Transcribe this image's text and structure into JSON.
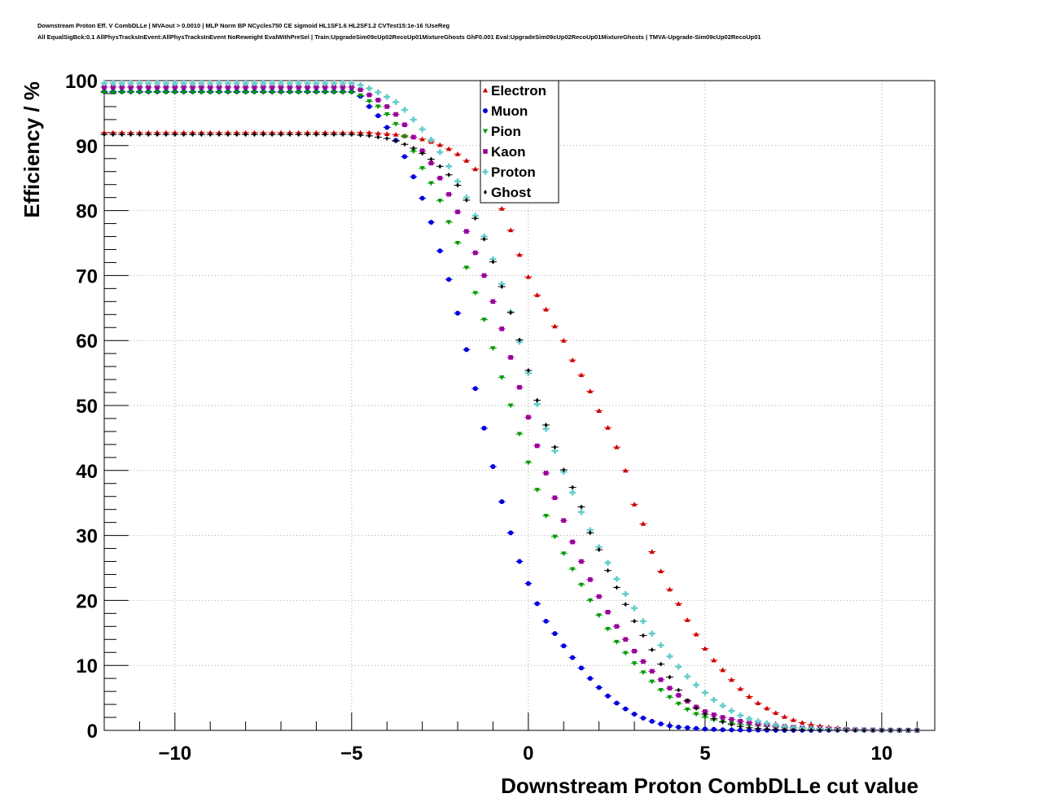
{
  "chart_data": {
    "type": "scatter",
    "title_lines": [
      "Downstream Proton Eff. V CombDLLe | MVAout > 0.0010 | MLP Norm BP NCycles750 CE sigmoid HL1SF1.6 HL2SF1.2 CVTest15:1e-16 !UseReg",
      "All EqualSigBck:0.1 AllPhysTracksInEvent:AllPhysTracksInEvent NoReweight EvalWithPreSel | Train:UpgradeSim09cUp02RecoUp01MixtureGhosts GhF0.001 Eval:UpgradeSim09cUp02RecoUp01MixtureGhosts | TMVA-Upgrade-Sim09cUp02RecoUp01"
    ],
    "xlabel": "Downstream Proton CombDLLe cut value",
    "ylabel": "Efficiency / %",
    "xlim": [
      -12,
      11.5
    ],
    "ylim": [
      0,
      100
    ],
    "xticks": [
      -10,
      -5,
      0,
      5,
      10
    ],
    "xtick_labels": [
      "−10",
      "−5",
      "0",
      "5",
      "10"
    ],
    "yticks": [
      0,
      10,
      20,
      30,
      40,
      50,
      60,
      70,
      80,
      90,
      100
    ],
    "ytick_labels": [
      "0",
      "10",
      "20",
      "30",
      "40",
      "50",
      "60",
      "70",
      "80",
      "90",
      "100"
    ],
    "grid": true,
    "legend_position": "top-center",
    "x": [
      -12,
      -11.75,
      -11.5,
      -11.25,
      -11,
      -10.75,
      -10.5,
      -10.25,
      -10,
      -9.75,
      -9.5,
      -9.25,
      -9,
      -8.75,
      -8.5,
      -8.25,
      -8,
      -7.75,
      -7.5,
      -7.25,
      -7,
      -6.75,
      -6.5,
      -6.25,
      -6,
      -5.75,
      -5.5,
      -5.25,
      -5,
      -4.75,
      -4.5,
      -4.25,
      -4,
      -3.75,
      -3.5,
      -3.25,
      -3,
      -2.75,
      -2.5,
      -2.25,
      -2,
      -1.75,
      -1.5,
      -1.25,
      -1,
      -0.75,
      -0.5,
      -0.25,
      0,
      0.25,
      0.5,
      0.75,
      1,
      1.25,
      1.5,
      1.75,
      2,
      2.25,
      2.5,
      2.75,
      3,
      3.25,
      3.5,
      3.75,
      4,
      4.25,
      4.5,
      4.75,
      5,
      5.25,
      5.5,
      5.75,
      6,
      6.25,
      6.5,
      6.75,
      7,
      7.25,
      7.5,
      7.75,
      8,
      8.25,
      8.5,
      8.75,
      9,
      9.25,
      9.5,
      9.75,
      10,
      10.25,
      10.5,
      10.75,
      11
    ],
    "series": [
      {
        "name": "Electron",
        "color": "#cc0000",
        "marker": "triangle-up",
        "values": [
          92.0,
          92.0,
          92.0,
          92.0,
          92.0,
          92.0,
          92.0,
          92.0,
          92.0,
          92.0,
          92.0,
          92.0,
          92.0,
          92.0,
          92.0,
          92.0,
          92.0,
          92.0,
          92.0,
          92.0,
          92.0,
          92.0,
          92.0,
          92.0,
          92.0,
          92.0,
          92.0,
          92.0,
          92.0,
          92.0,
          92.0,
          91.9,
          91.8,
          91.7,
          91.5,
          91.3,
          91.0,
          90.6,
          90.1,
          89.5,
          88.7,
          87.7,
          86.4,
          84.8,
          82.8,
          80.3,
          77.0,
          73.2,
          69.8,
          67.0,
          64.8,
          62.2,
          60.0,
          57.0,
          54.7,
          52.2,
          49.2,
          46.6,
          43.6,
          40.0,
          34.8,
          31.8,
          27.5,
          24.5,
          21.7,
          19.5,
          17.0,
          14.8,
          12.6,
          10.8,
          9.3,
          7.8,
          6.4,
          5.2,
          4.2,
          3.4,
          2.7,
          2.1,
          1.6,
          1.2,
          0.9,
          0.7,
          0.5,
          0.4,
          0.3,
          0.2,
          0.15,
          0.1,
          0.08,
          0.06,
          0.04,
          0.03,
          0.02
        ]
      },
      {
        "name": "Muon",
        "color": "#0000dd",
        "marker": "circle",
        "values": [
          98.3,
          98.3,
          98.3,
          98.3,
          98.3,
          98.3,
          98.3,
          98.3,
          98.3,
          98.3,
          98.3,
          98.3,
          98.3,
          98.3,
          98.3,
          98.3,
          98.3,
          98.3,
          98.3,
          98.3,
          98.3,
          98.3,
          98.3,
          98.3,
          98.3,
          98.3,
          98.3,
          98.3,
          98.3,
          97.6,
          96.0,
          94.6,
          92.8,
          90.8,
          88.3,
          85.2,
          81.9,
          78.2,
          73.8,
          69.4,
          64.2,
          58.6,
          52.6,
          46.5,
          40.6,
          35.2,
          30.4,
          26.0,
          22.6,
          19.5,
          16.8,
          14.9,
          13.0,
          11.2,
          9.6,
          8.0,
          6.6,
          5.3,
          4.2,
          3.3,
          2.5,
          1.9,
          1.4,
          1.0,
          0.7,
          0.5,
          0.4,
          0.3,
          0.2,
          0.15,
          0.1,
          0.08,
          0.06,
          0.05,
          0.04,
          0.03,
          0.02,
          0.02,
          0.01,
          0.01,
          0.01,
          0.01,
          0.01,
          0.01,
          0.01,
          0.01,
          0.01,
          0.01,
          0.01,
          0.01,
          0.01,
          0.01,
          0.01
        ]
      },
      {
        "name": "Pion",
        "color": "#009900",
        "marker": "triangle-down",
        "values": [
          98.2,
          98.2,
          98.2,
          98.2,
          98.2,
          98.2,
          98.2,
          98.2,
          98.2,
          98.2,
          98.2,
          98.2,
          98.2,
          98.2,
          98.2,
          98.2,
          98.2,
          98.2,
          98.2,
          98.2,
          98.2,
          98.2,
          98.2,
          98.2,
          98.2,
          98.2,
          98.2,
          98.2,
          98.2,
          97.7,
          96.8,
          96.0,
          94.8,
          93.3,
          91.4,
          89.1,
          86.5,
          84.2,
          81.5,
          78.2,
          75.0,
          71.2,
          67.3,
          63.2,
          58.8,
          54.3,
          50.0,
          45.6,
          41.2,
          37.0,
          33.0,
          29.8,
          27.2,
          24.8,
          22.4,
          20.0,
          17.7,
          15.6,
          13.6,
          11.9,
          10.3,
          8.9,
          7.5,
          6.2,
          5.1,
          4.1,
          3.2,
          2.5,
          2.0,
          1.6,
          1.3,
          1.1,
          0.9,
          0.8,
          0.7,
          0.6,
          0.5,
          0.4,
          0.35,
          0.3,
          0.25,
          0.2,
          0.16,
          0.12,
          0.1,
          0.08,
          0.06,
          0.05,
          0.04,
          0.03,
          0.02,
          0.02,
          0.01
        ]
      },
      {
        "name": "Kaon",
        "color": "#990099",
        "marker": "square",
        "values": [
          99.0,
          99.0,
          99.0,
          99.0,
          99.0,
          99.0,
          99.0,
          99.0,
          99.0,
          99.0,
          99.0,
          99.0,
          99.0,
          99.0,
          99.0,
          99.0,
          99.0,
          99.0,
          99.0,
          99.0,
          99.0,
          99.0,
          99.0,
          99.0,
          99.0,
          99.0,
          99.0,
          99.0,
          99.0,
          98.6,
          97.8,
          97.0,
          96.0,
          94.8,
          93.2,
          91.3,
          89.2,
          87.3,
          85.0,
          82.5,
          79.8,
          76.8,
          73.5,
          70.0,
          66.0,
          61.8,
          57.4,
          52.8,
          48.2,
          43.8,
          39.6,
          35.8,
          32.3,
          29.0,
          26.0,
          23.2,
          20.6,
          18.2,
          16.0,
          14.0,
          12.2,
          10.6,
          9.1,
          7.8,
          6.5,
          5.4,
          4.5,
          3.6,
          2.9,
          2.4,
          2.0,
          1.7,
          1.4,
          1.2,
          1.0,
          0.85,
          0.7,
          0.6,
          0.5,
          0.4,
          0.33,
          0.27,
          0.22,
          0.18,
          0.14,
          0.11,
          0.09,
          0.07,
          0.05,
          0.04,
          0.03,
          0.02,
          0.01
        ]
      },
      {
        "name": "Proton",
        "color": "#66cccc",
        "marker": "cross",
        "values": [
          99.6,
          99.6,
          99.6,
          99.6,
          99.6,
          99.6,
          99.6,
          99.6,
          99.6,
          99.6,
          99.6,
          99.6,
          99.6,
          99.6,
          99.6,
          99.6,
          99.6,
          99.6,
          99.6,
          99.6,
          99.6,
          99.6,
          99.6,
          99.6,
          99.6,
          99.6,
          99.6,
          99.6,
          99.6,
          99.3,
          98.8,
          98.2,
          97.5,
          96.7,
          95.5,
          94.0,
          92.5,
          90.9,
          89.0,
          86.8,
          84.5,
          82.0,
          79.2,
          76.0,
          72.5,
          68.7,
          64.4,
          59.8,
          55.0,
          50.2,
          46.4,
          43.0,
          39.8,
          36.6,
          33.6,
          30.8,
          28.2,
          25.8,
          23.3,
          21.0,
          18.8,
          16.8,
          14.9,
          13.1,
          11.4,
          9.8,
          8.3,
          7.0,
          5.8,
          4.7,
          3.8,
          3.0,
          2.3,
          1.8,
          1.4,
          1.1,
          0.8,
          0.6,
          0.45,
          0.35,
          0.27,
          0.2,
          0.15,
          0.11,
          0.08,
          0.06,
          0.05,
          0.04,
          0.03,
          0.02,
          0.02,
          0.01,
          0.01
        ]
      },
      {
        "name": "Ghost",
        "color": "#000000",
        "marker": "diamond",
        "values": [
          91.7,
          91.7,
          91.7,
          91.7,
          91.7,
          91.7,
          91.7,
          91.7,
          91.7,
          91.7,
          91.7,
          91.7,
          91.7,
          91.7,
          91.7,
          91.7,
          91.7,
          91.7,
          91.7,
          91.7,
          91.7,
          91.7,
          91.7,
          91.7,
          91.7,
          91.7,
          91.7,
          91.7,
          91.7,
          91.6,
          91.5,
          91.3,
          91.1,
          90.7,
          90.2,
          89.6,
          88.8,
          87.9,
          86.8,
          85.5,
          83.9,
          81.6,
          78.8,
          75.6,
          72.1,
          68.3,
          64.3,
          60.1,
          55.4,
          50.8,
          47.0,
          43.6,
          40.1,
          37.4,
          34.4,
          30.4,
          27.8,
          24.6,
          22.0,
          19.4,
          16.8,
          14.6,
          12.4,
          10.2,
          8.2,
          6.2,
          4.6,
          3.4,
          2.5,
          1.8,
          1.3,
          0.9,
          0.6,
          0.4,
          0.3,
          0.2,
          0.15,
          0.1,
          0.08,
          0.06,
          0.05,
          0.04,
          0.03,
          0.02,
          0.02,
          0.01,
          0.01,
          0.01,
          0.01,
          0.01,
          0.01,
          0.01,
          0.01
        ]
      }
    ]
  }
}
